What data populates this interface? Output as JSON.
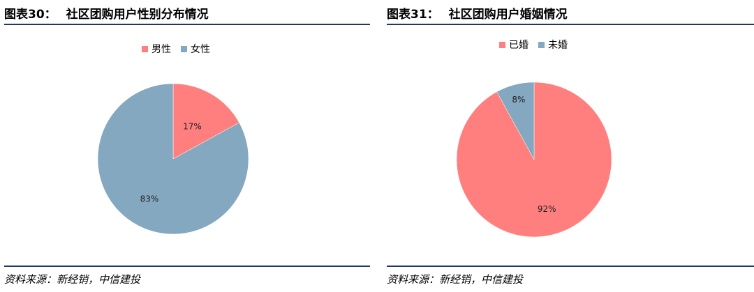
{
  "charts": [
    {
      "title_num": "图表30：",
      "title_text": "社区团购用户性别分布情况",
      "source": "资料来源：新经销，中信建投",
      "chart_data": {
        "type": "pie",
        "categories": [
          "男性",
          "女性"
        ],
        "values": [
          17,
          83
        ],
        "labels": [
          "17%",
          "83%"
        ],
        "colors": [
          "#ff7f7f",
          "#84a8bf"
        ],
        "legend": "top-center"
      }
    },
    {
      "title_num": "图表31：",
      "title_text": "社区团购用户婚姻情况",
      "source": "资料来源：新经销，中信建投",
      "chart_data": {
        "type": "pie",
        "categories": [
          "已婚",
          "未婚"
        ],
        "values": [
          92,
          8
        ],
        "labels": [
          "92%",
          "8%"
        ],
        "colors": [
          "#ff7f7f",
          "#84a8bf"
        ],
        "legend": "top-center"
      }
    }
  ]
}
